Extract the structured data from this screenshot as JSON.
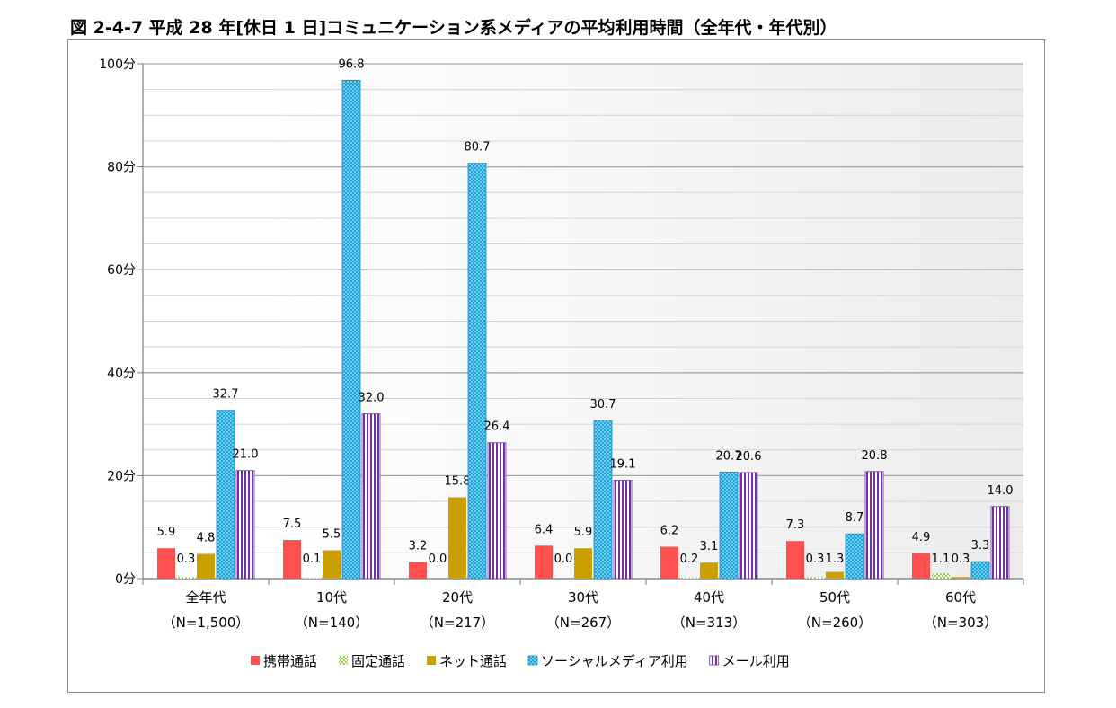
{
  "title": "図 2-4-7 平成 28 年[休日 1 日]コミュニケーション系メディアの平均利用時間（全年代・年代別）",
  "chart_data": {
    "type": "bar",
    "categories": [
      {
        "name": "全年代",
        "n": "（N=1,500）"
      },
      {
        "name": "10代",
        "n": "（N=140）"
      },
      {
        "name": "20代",
        "n": "（N=217）"
      },
      {
        "name": "30代",
        "n": "（N=267）"
      },
      {
        "name": "40代",
        "n": "（N=313）"
      },
      {
        "name": "50代",
        "n": "（N=260）"
      },
      {
        "name": "60代",
        "n": "（N=303）"
      }
    ],
    "series": [
      {
        "name": "携帯通話",
        "color": "#ff5050",
        "pattern": "solid",
        "values": [
          5.9,
          7.5,
          3.2,
          6.4,
          6.2,
          7.3,
          4.9
        ],
        "labels": [
          "5.9",
          "7.5",
          "3.2",
          "6.4",
          "6.2",
          "7.3",
          "4.9"
        ]
      },
      {
        "name": "固定通話",
        "color": "#92d050",
        "pattern": "checker",
        "values": [
          0.3,
          0.1,
          0.0,
          0.0,
          0.2,
          0.3,
          1.1
        ],
        "labels": [
          "0.3",
          "0.1",
          "0.0",
          "0.0",
          "0.2",
          "0.3",
          "1.1"
        ]
      },
      {
        "name": "ネット通話",
        "color": "#c9a000",
        "pattern": "solid",
        "values": [
          4.8,
          5.5,
          15.8,
          5.9,
          3.1,
          1.3,
          0.3
        ],
        "labels": [
          "4.8",
          "5.5",
          "15.8",
          "5.9",
          "3.1",
          "1.3",
          "0.3"
        ]
      },
      {
        "name": "ソーシャルメディア利用",
        "color": "#1aa6dc",
        "pattern": "dots",
        "values": [
          32.7,
          96.8,
          80.7,
          30.7,
          20.7,
          8.7,
          3.3
        ],
        "labels": [
          "32.7",
          "96.8",
          "80.7",
          "30.7",
          "20.7",
          "8.7",
          "3.3"
        ]
      },
      {
        "name": "メール利用",
        "color": "#7030a0",
        "pattern": "vstripes",
        "values": [
          21.0,
          32.0,
          26.4,
          19.1,
          20.6,
          20.8,
          14.0
        ],
        "labels": [
          "21.0",
          "32.0",
          "26.4",
          "19.1",
          "20.6",
          "20.8",
          "14.0"
        ]
      }
    ],
    "yticks": [
      "0分",
      "20分",
      "40分",
      "60分",
      "80分",
      "100分"
    ],
    "ylim": [
      0,
      100
    ],
    "ytick_values": [
      0,
      20,
      40,
      60,
      80,
      100
    ],
    "grid": true,
    "legend_position": "bottom"
  }
}
